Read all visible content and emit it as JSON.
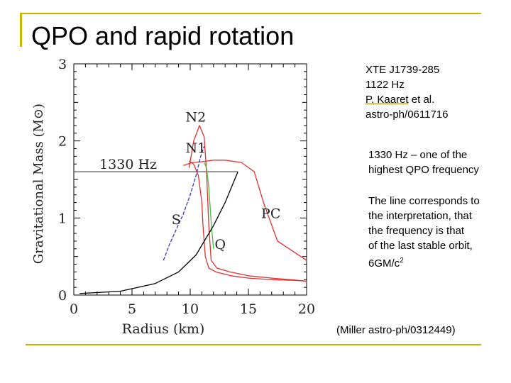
{
  "slide": {
    "title": "QPO and rapid rotation",
    "accent_color": "#c8b400",
    "source_lines": [
      "XTE J1739-285",
      "1122 Hz"
    ],
    "author_link": "P. Kaaret",
    "author_suffix": " et al.",
    "arxiv": "astro-ph/0611716",
    "para1_lines": [
      "1330 Hz – one of the",
      "highest QPO frequency"
    ],
    "para2_lines": [
      "The line corresponds to",
      "the interpretation, that",
      "the frequency is that",
      "of the last stable orbit,"
    ],
    "orbit_text": "6GM/c",
    "orbit_sup": "2",
    "citation": "(Miller astro-ph/0312449)"
  },
  "chart_data": {
    "type": "line",
    "xlabel": "Radius (km)",
    "ylabel": "Gravitational Mass (M⊙)",
    "xlim": [
      0,
      20
    ],
    "ylim": [
      0,
      3
    ],
    "xticks": [
      0,
      5,
      10,
      15,
      20
    ],
    "yticks": [
      0,
      1,
      2,
      3
    ],
    "series": [
      {
        "name": "N2",
        "color": "#e03030",
        "x": [
          9.9,
          10.3,
          10.8,
          11.2,
          11.4,
          11.6,
          11.8,
          12.3,
          13.4,
          15.0,
          17.0,
          18.6,
          20.0
        ],
        "y": [
          1.65,
          2.0,
          2.2,
          2.05,
          1.6,
          0.9,
          0.45,
          0.35,
          0.3,
          0.25,
          0.22,
          0.2,
          0.18
        ]
      },
      {
        "name": "N1",
        "color": "#e03030",
        "x": [
          9.4,
          10.2,
          11.0,
          12.0,
          13.0,
          14.4,
          15.5,
          16.3,
          17.5,
          19.0,
          20.0
        ],
        "y": [
          1.68,
          1.72,
          1.73,
          1.75,
          1.75,
          1.72,
          1.6,
          1.2,
          0.7,
          0.55,
          0.45
        ]
      },
      {
        "name": "",
        "color": "#e03030",
        "x": [
          9.9,
          10.3,
          10.7,
          11.0,
          11.1,
          11.3,
          11.6,
          12.2,
          13.5,
          15.0,
          17.0,
          19.0,
          20.0
        ],
        "y": [
          1.74,
          1.7,
          1.55,
          1.2,
          0.9,
          0.5,
          0.35,
          0.3,
          0.25,
          0.22,
          0.2,
          0.19,
          0.18
        ]
      },
      {
        "name": "S",
        "color": "#3838c8",
        "x": [
          7.7,
          8.2,
          8.8,
          9.4,
          10.0,
          10.5,
          10.9,
          11.2
        ],
        "y": [
          0.45,
          0.65,
          0.85,
          1.05,
          1.3,
          1.55,
          1.8,
          1.93
        ]
      },
      {
        "name": "Q",
        "color": "#40c040",
        "x": [
          11.2,
          11.4,
          11.6,
          11.8,
          12.0
        ],
        "y": [
          1.72,
          1.65,
          1.4,
          0.95,
          0.6
        ]
      },
      {
        "name": "",
        "color": "#000000",
        "x": [
          0.5,
          4.0,
          7.0,
          9.0,
          10.5,
          12.0,
          13.0,
          14.1
        ],
        "y": [
          0.02,
          0.05,
          0.15,
          0.3,
          0.52,
          0.9,
          1.2,
          1.6
        ]
      }
    ],
    "frequency_line": {
      "label": "1330 Hz",
      "y": 1.6,
      "x": [
        0,
        14.1
      ]
    },
    "curve_labels": [
      {
        "text": "N2",
        "x": 9.6,
        "y": 2.25
      },
      {
        "text": "N1",
        "x": 9.6,
        "y": 1.85
      },
      {
        "text": "S",
        "x": 8.4,
        "y": 0.92
      },
      {
        "text": "PC",
        "x": 16.1,
        "y": 1.0
      },
      {
        "text": "Q",
        "x": 12.1,
        "y": 0.6
      }
    ]
  }
}
